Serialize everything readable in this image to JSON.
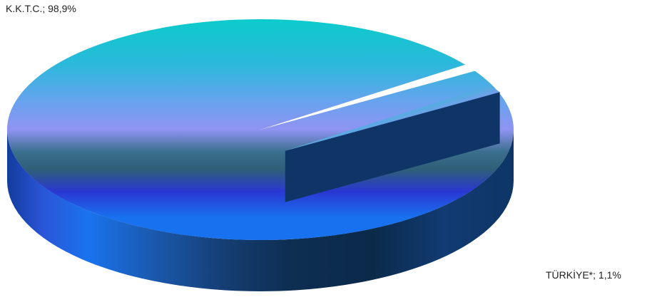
{
  "chart_data": {
    "type": "pie",
    "title": "",
    "series": [
      {
        "name": "K.K.T.C.",
        "value": 98.9,
        "label": "K.K.T.C.; 98,9%"
      },
      {
        "name": "TÜRKİYE*",
        "value": 1.1,
        "label": "TÜRKİYE*; 1,1%"
      }
    ],
    "style": "3d-exploded",
    "colors": {
      "top_cyan": "#0ccbcc",
      "top_lavender": "#8f93f2",
      "top_dark_teal": "#2f5f78",
      "top_indigo": "#2a37d2",
      "top_blue": "#1872f0",
      "side_dark": "#0a2a48"
    }
  }
}
